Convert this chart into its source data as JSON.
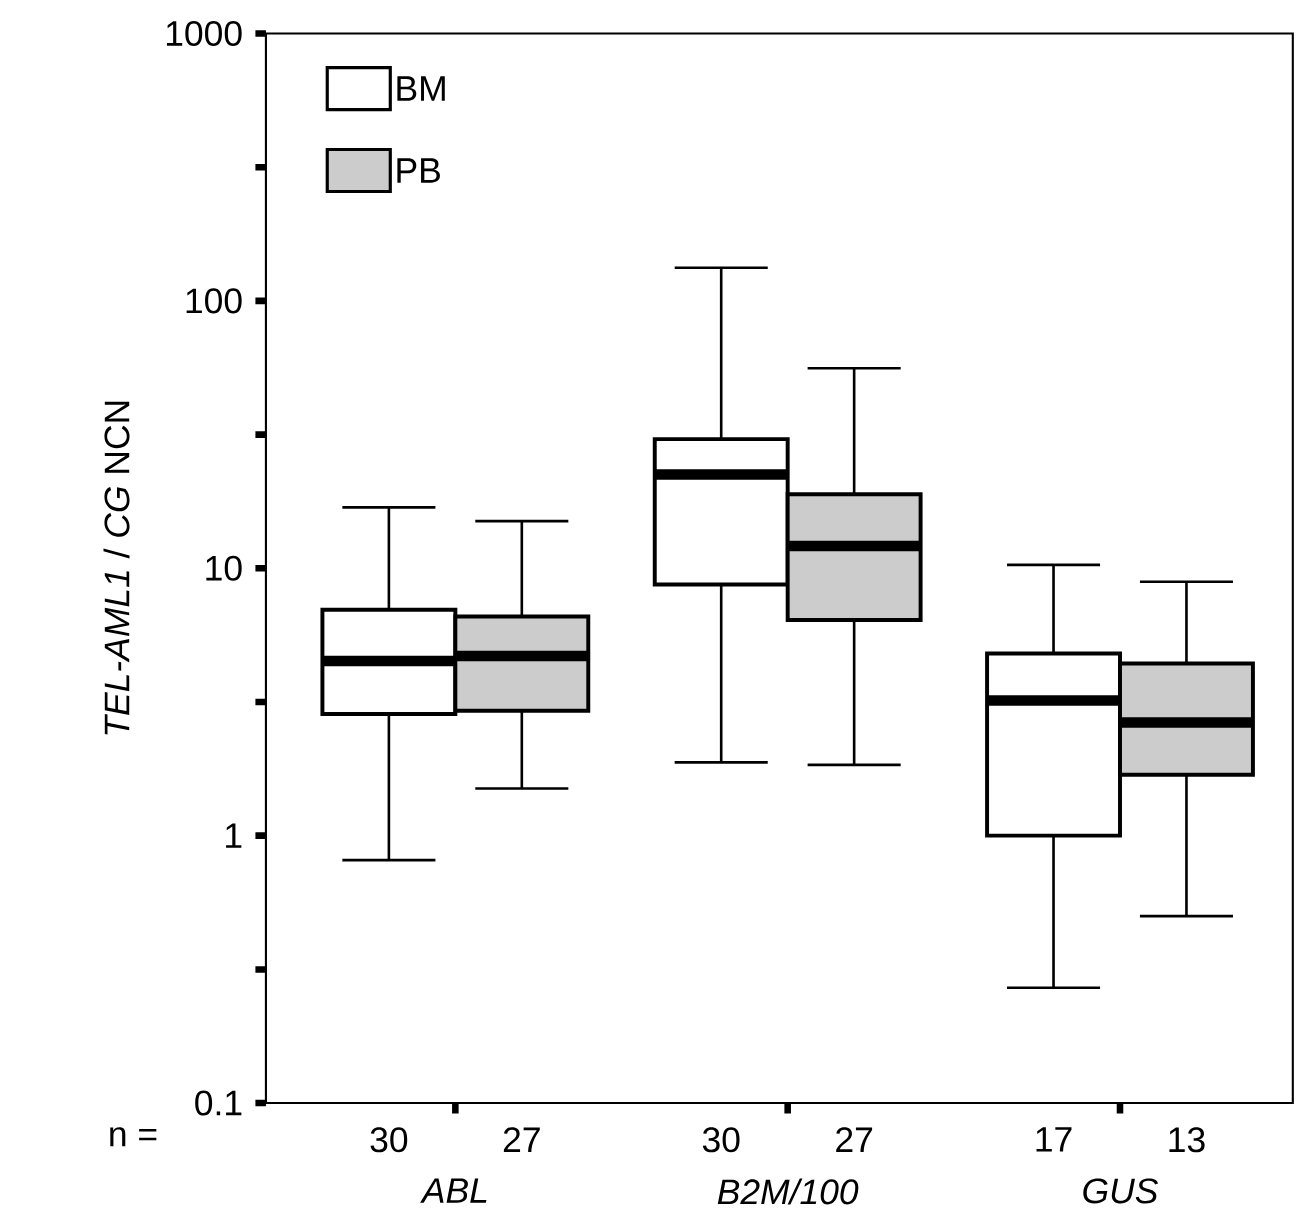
{
  "chart_data": {
    "type": "box",
    "ylabel": "*TEL-AML1* / *CG* NCN",
    "categories": [
      "ABL",
      "B2M/100",
      "GUS"
    ],
    "series": [
      {
        "name": "BM",
        "color": "#ffffff",
        "boxes": [
          {
            "low": 0.81,
            "q1": 2.85,
            "median": 4.5,
            "q3": 7.0,
            "high": 16.9
          },
          {
            "low": 1.88,
            "q1": 8.7,
            "median": 22.4,
            "q3": 30.4,
            "high": 133
          },
          {
            "low": 0.27,
            "q1": 1.0,
            "median": 3.2,
            "q3": 4.8,
            "high": 10.3
          }
        ]
      },
      {
        "name": "PB",
        "color": "#cccccc",
        "boxes": [
          {
            "low": 1.5,
            "q1": 2.93,
            "median": 4.7,
            "q3": 6.6,
            "high": 15.0
          },
          {
            "low": 1.84,
            "q1": 6.4,
            "median": 12.1,
            "q3": 18.9,
            "high": 56
          },
          {
            "low": 0.5,
            "q1": 1.69,
            "median": 2.65,
            "q3": 4.4,
            "high": 8.9
          }
        ]
      }
    ],
    "log": "y",
    "ylim": [
      0.1,
      1000
    ],
    "yticks": [
      0.1,
      {
        "value": 0.316,
        "label": null
      },
      1,
      {
        "value": 3.16,
        "label": null
      },
      10,
      {
        "value": 31.6,
        "label": null
      },
      100,
      {
        "value": 316,
        "label": null
      },
      1000
    ],
    "legend": "top left",
    "annotations": [
      "n =",
      "30",
      "27",
      "30",
      "27",
      "17",
      "13"
    ]
  }
}
